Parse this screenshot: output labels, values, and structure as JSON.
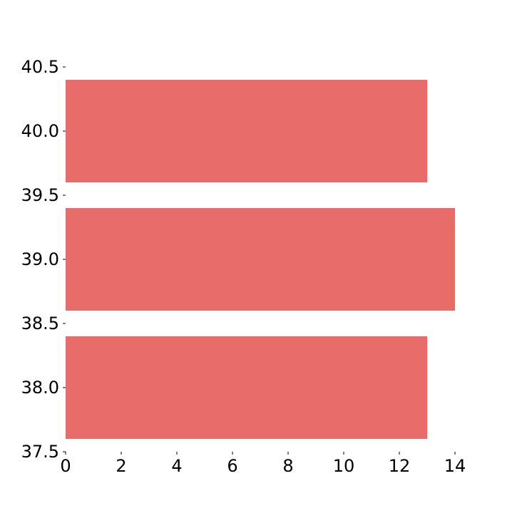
{
  "chart_data": {
    "type": "bar",
    "orientation": "horizontal",
    "title": "",
    "xlabel": "",
    "ylabel": "",
    "bars": [
      {
        "y": 38.0,
        "value": 13
      },
      {
        "y": 39.0,
        "value": 14
      },
      {
        "y": 40.0,
        "value": 13
      }
    ],
    "bar_height": 0.8,
    "xlim": [
      0,
      14
    ],
    "ylim": [
      37.5,
      40.5
    ],
    "x_ticks": [
      0,
      2,
      4,
      6,
      8,
      10,
      12,
      14
    ],
    "x_tick_labels": [
      "0",
      "2",
      "4",
      "6",
      "8",
      "10",
      "12",
      "14"
    ],
    "y_ticks": [
      37.5,
      38.0,
      38.5,
      39.0,
      39.5,
      40.0,
      40.5
    ],
    "y_tick_labels": [
      "37.5",
      "38.0",
      "38.5",
      "39.0",
      "39.5",
      "40.0",
      "40.5"
    ],
    "bar_color": "#e86d6a",
    "grid": false,
    "legend": "none"
  }
}
